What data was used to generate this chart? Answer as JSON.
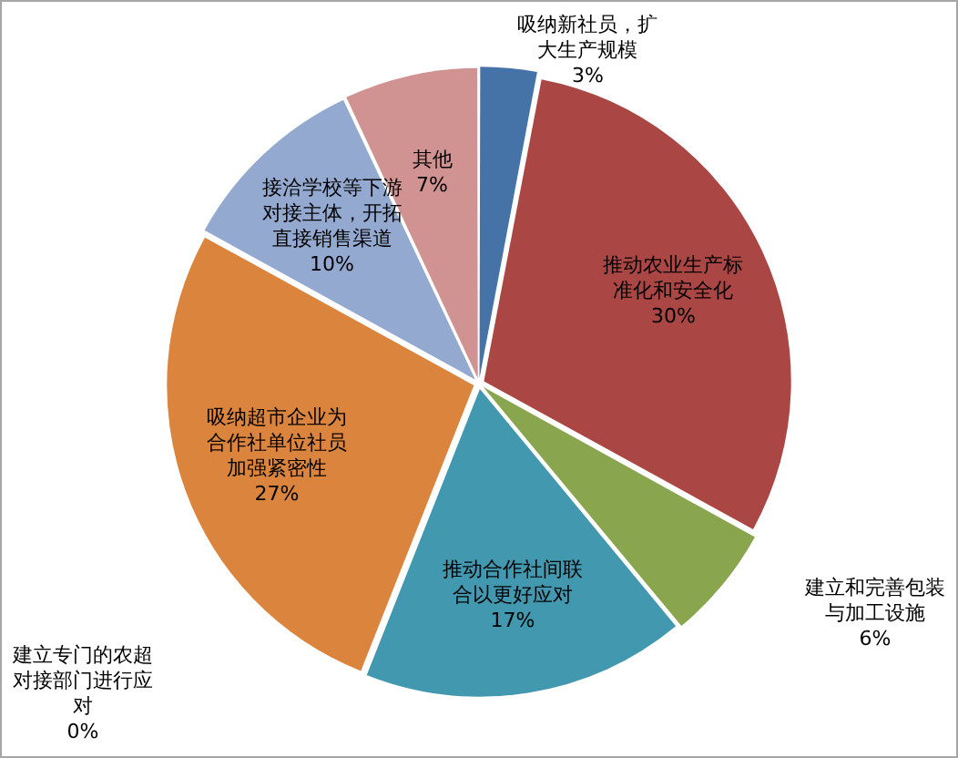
{
  "chart_data": {
    "type": "pie",
    "categories": [
      "吸纳新社员，扩大生产规模",
      "推动农业生产标准化和安全化",
      "建立和完善包装与加工设施",
      "推动合作社间联合以更好应对",
      "建立专门的农超对接部门进行应对",
      "吸纳超市企业为合作社单位社员加强紧密性",
      "接洽学校等下游对接主体，开拓直接销售渠道",
      "其他"
    ],
    "values": [
      3,
      30,
      6,
      17,
      0,
      27,
      10,
      7
    ],
    "value_labels": [
      "3%",
      "30%",
      "6%",
      "17%",
      "0%",
      "27%",
      "10%",
      "7%"
    ],
    "colors": [
      "#4572a7",
      "#aa4643",
      "#89a54e",
      "#4198af",
      "#80699b",
      "#db843d",
      "#93a9cf",
      "#d19392"
    ],
    "legend": false
  }
}
